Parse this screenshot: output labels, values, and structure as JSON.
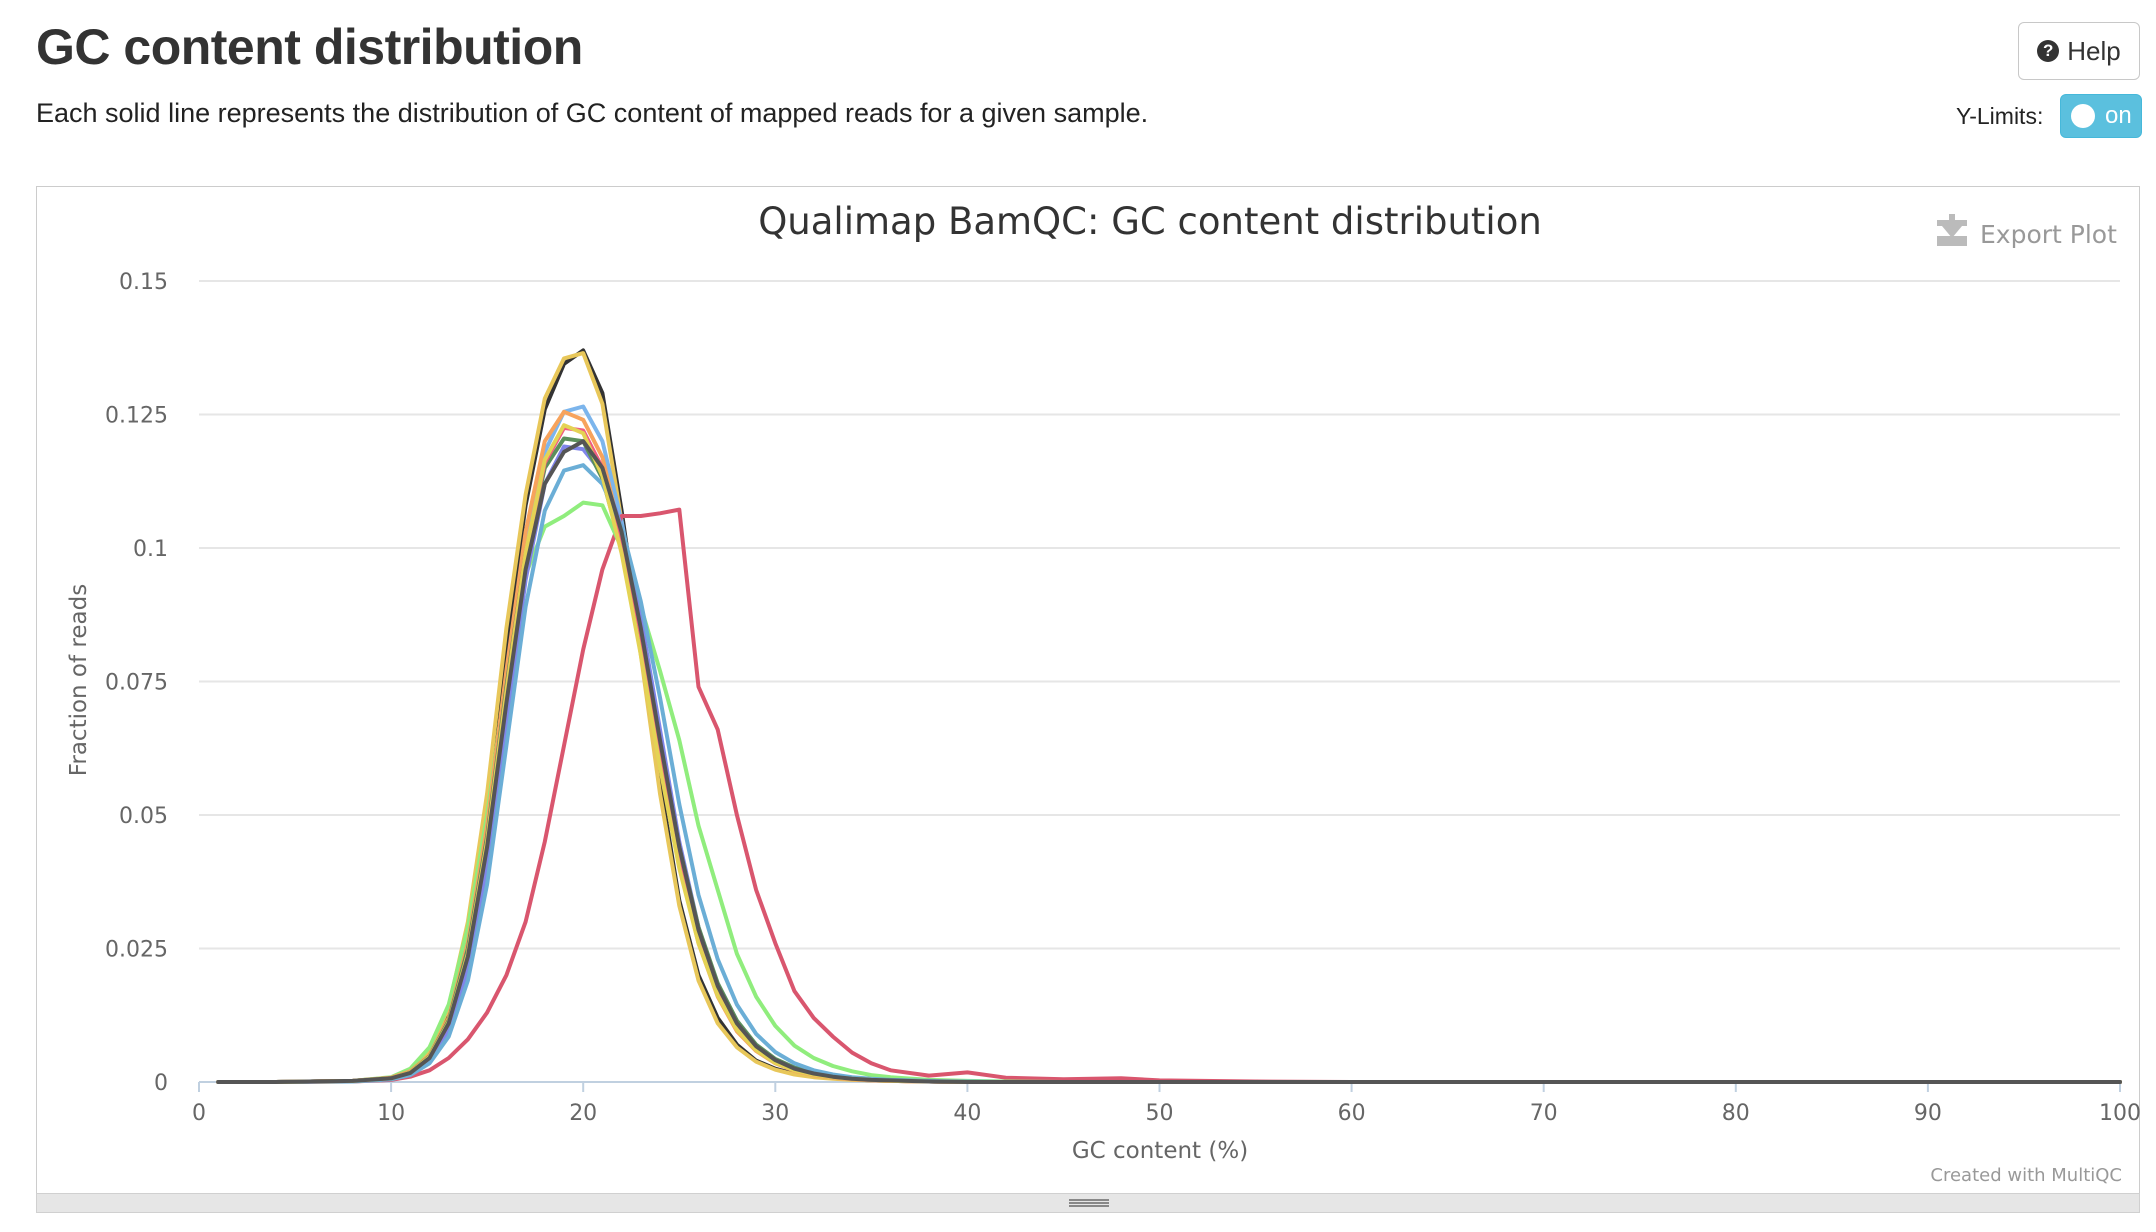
{
  "header": {
    "title": "GC content distribution",
    "description": "Each solid line represents the distribution of GC content of mapped reads for a given sample.",
    "help_label": "Help",
    "ylimits_label": "Y-Limits:",
    "toggle_label": "on"
  },
  "plot": {
    "export_label": "Export Plot",
    "credit": "Created with MultiQC"
  },
  "chart_data": {
    "type": "line",
    "title": "Qualimap BamQC: GC content distribution",
    "xlabel": "GC content (%)",
    "ylabel": "Fraction of reads",
    "xlim": [
      0,
      100
    ],
    "ylim": [
      0,
      0.15
    ],
    "grid": true,
    "legend": "none",
    "x_ticks": [
      "0",
      "10",
      "20",
      "30",
      "40",
      "50",
      "60",
      "70",
      "80",
      "90",
      "100"
    ],
    "y_ticks": [
      "0",
      "0.025",
      "0.05",
      "0.075",
      "0.1",
      "0.125",
      "0.15"
    ],
    "x_values": [
      1,
      4,
      8,
      10,
      11,
      12,
      13,
      14,
      15,
      16,
      17,
      18,
      19,
      20,
      21,
      22,
      23,
      24,
      25,
      26,
      27,
      28,
      29,
      30,
      31,
      32,
      33,
      34,
      35,
      36,
      38,
      40,
      42,
      45,
      48,
      50,
      55,
      60,
      70,
      80,
      90,
      100
    ],
    "series": [
      {
        "color": "#333333",
        "values": [
          0,
          0,
          0.0002,
          0.0008,
          0.002,
          0.0055,
          0.013,
          0.028,
          0.052,
          0.082,
          0.108,
          0.126,
          0.1345,
          0.137,
          0.129,
          0.107,
          0.082,
          0.056,
          0.034,
          0.02,
          0.012,
          0.007,
          0.004,
          0.0025,
          0.0015,
          0.001,
          0.0007,
          0.0005,
          0.0003,
          0.0002,
          0.0001,
          0,
          0,
          0,
          0,
          0,
          0,
          0,
          0,
          0,
          0,
          0
        ]
      },
      {
        "color": "#e8c75a",
        "values": [
          0,
          0,
          0.0002,
          0.0008,
          0.0022,
          0.006,
          0.014,
          0.03,
          0.054,
          0.085,
          0.11,
          0.128,
          0.1355,
          0.1365,
          0.127,
          0.105,
          0.08,
          0.054,
          0.033,
          0.019,
          0.011,
          0.0065,
          0.0038,
          0.0023,
          0.0014,
          0.0009,
          0.0006,
          0.0004,
          0.0003,
          0.0002,
          0.0001,
          0,
          0,
          0,
          0,
          0,
          0,
          0,
          0,
          0,
          0,
          0
        ]
      },
      {
        "color": "#7cb5ec",
        "values": [
          0,
          0,
          0.0002,
          0.0007,
          0.0018,
          0.0045,
          0.011,
          0.024,
          0.045,
          0.074,
          0.1,
          0.118,
          0.1255,
          0.1265,
          0.12,
          0.105,
          0.086,
          0.064,
          0.043,
          0.027,
          0.017,
          0.0105,
          0.0065,
          0.004,
          0.0025,
          0.0016,
          0.0011,
          0.0007,
          0.0005,
          0.0003,
          0.0002,
          0.0001,
          0,
          0,
          0,
          0,
          0,
          0,
          0,
          0,
          0,
          0
        ]
      },
      {
        "color": "#d9566e",
        "values": [
          0,
          0,
          0.0001,
          0.0004,
          0.001,
          0.0022,
          0.0045,
          0.008,
          0.013,
          0.02,
          0.03,
          0.045,
          0.063,
          0.081,
          0.096,
          0.106,
          0.106,
          0.1065,
          0.1072,
          0.074,
          0.066,
          0.05,
          0.036,
          0.026,
          0.017,
          0.012,
          0.0085,
          0.0055,
          0.0035,
          0.0022,
          0.0012,
          0.0018,
          0.0008,
          0.0005,
          0.0007,
          0.0003,
          0.0001,
          0,
          0,
          0,
          0,
          0
        ]
      },
      {
        "color": "#90ed7d",
        "values": [
          0,
          0,
          0.0002,
          0.0009,
          0.0025,
          0.0065,
          0.0145,
          0.029,
          0.05,
          0.076,
          0.095,
          0.104,
          0.106,
          0.1085,
          0.108,
          0.1,
          0.089,
          0.077,
          0.064,
          0.048,
          0.036,
          0.024,
          0.016,
          0.0105,
          0.0068,
          0.0045,
          0.003,
          0.002,
          0.0013,
          0.0009,
          0.0004,
          0.0002,
          0.0001,
          0,
          0,
          0,
          0,
          0,
          0,
          0,
          0,
          0
        ]
      },
      {
        "color": "#f7a35c",
        "values": [
          0,
          0,
          0.0002,
          0.0008,
          0.002,
          0.005,
          0.012,
          0.026,
          0.048,
          0.077,
          0.103,
          0.12,
          0.1255,
          0.124,
          0.117,
          0.102,
          0.083,
          0.061,
          0.041,
          0.026,
          0.016,
          0.0095,
          0.0058,
          0.0035,
          0.0021,
          0.0013,
          0.0008,
          0.0005,
          0.0003,
          0.0002,
          0.0001,
          0,
          0,
          0,
          0,
          0,
          0,
          0,
          0,
          0,
          0,
          0
        ]
      },
      {
        "color": "#8085e9",
        "values": [
          0,
          0,
          0.0002,
          0.0006,
          0.0015,
          0.004,
          0.0095,
          0.021,
          0.04,
          0.067,
          0.094,
          0.112,
          0.119,
          0.1185,
          0.114,
          0.104,
          0.087,
          0.066,
          0.045,
          0.029,
          0.018,
          0.011,
          0.0068,
          0.0042,
          0.0026,
          0.0016,
          0.001,
          0.0006,
          0.0004,
          0.0003,
          0.0001,
          0,
          0,
          0,
          0,
          0,
          0,
          0,
          0,
          0,
          0,
          0
        ]
      },
      {
        "color": "#5b8f5b",
        "values": [
          0,
          0,
          0.0002,
          0.0007,
          0.0018,
          0.0048,
          0.0115,
          0.025,
          0.046,
          0.074,
          0.099,
          0.115,
          0.1205,
          0.12,
          0.113,
          0.1,
          0.083,
          0.063,
          0.044,
          0.029,
          0.0185,
          0.0115,
          0.007,
          0.0043,
          0.0027,
          0.0017,
          0.0011,
          0.0007,
          0.0004,
          0.0003,
          0.0001,
          0,
          0,
          0,
          0,
          0,
          0,
          0,
          0,
          0,
          0,
          0
        ]
      },
      {
        "color": "#f15c80",
        "values": [
          0,
          0,
          0.0002,
          0.0007,
          0.0017,
          0.0045,
          0.011,
          0.024,
          0.045,
          0.073,
          0.099,
          0.116,
          0.1225,
          0.122,
          0.115,
          0.102,
          0.084,
          0.063,
          0.043,
          0.028,
          0.0175,
          0.0105,
          0.0064,
          0.0039,
          0.0024,
          0.0015,
          0.0009,
          0.0006,
          0.0004,
          0.0002,
          0.0001,
          0,
          0,
          0,
          0,
          0,
          0,
          0,
          0,
          0,
          0,
          0
        ]
      },
      {
        "color": "#6baed6",
        "values": [
          0,
          0,
          0.0001,
          0.0005,
          0.0013,
          0.0035,
          0.0085,
          0.019,
          0.037,
          0.063,
          0.089,
          0.107,
          0.1145,
          0.1155,
          0.112,
          0.104,
          0.09,
          0.072,
          0.052,
          0.035,
          0.023,
          0.0145,
          0.009,
          0.0056,
          0.0035,
          0.0022,
          0.0014,
          0.0009,
          0.0006,
          0.0004,
          0.0002,
          0.0001,
          0,
          0,
          0,
          0,
          0,
          0,
          0,
          0,
          0,
          0
        ]
      },
      {
        "color": "#e4d354",
        "values": [
          0,
          0,
          0.0002,
          0.0007,
          0.0018,
          0.0047,
          0.0112,
          0.024,
          0.045,
          0.073,
          0.099,
          0.1165,
          0.123,
          0.1215,
          0.1135,
          0.099,
          0.08,
          0.059,
          0.04,
          0.026,
          0.0162,
          0.0098,
          0.006,
          0.0036,
          0.0022,
          0.0014,
          0.0009,
          0.0006,
          0.0004,
          0.0002,
          0.0001,
          0,
          0,
          0,
          0,
          0,
          0,
          0,
          0,
          0,
          0,
          0
        ]
      },
      {
        "color": "#555555",
        "values": [
          0,
          0,
          0.0002,
          0.0007,
          0.0017,
          0.0045,
          0.011,
          0.0235,
          0.044,
          0.071,
          0.096,
          0.112,
          0.118,
          0.12,
          0.115,
          0.103,
          0.085,
          0.064,
          0.044,
          0.0285,
          0.018,
          0.011,
          0.0067,
          0.0041,
          0.0025,
          0.0016,
          0.001,
          0.0006,
          0.0004,
          0.0003,
          0.0001,
          0,
          0,
          0,
          0,
          0,
          0,
          0,
          0,
          0,
          0,
          0
        ]
      }
    ]
  }
}
